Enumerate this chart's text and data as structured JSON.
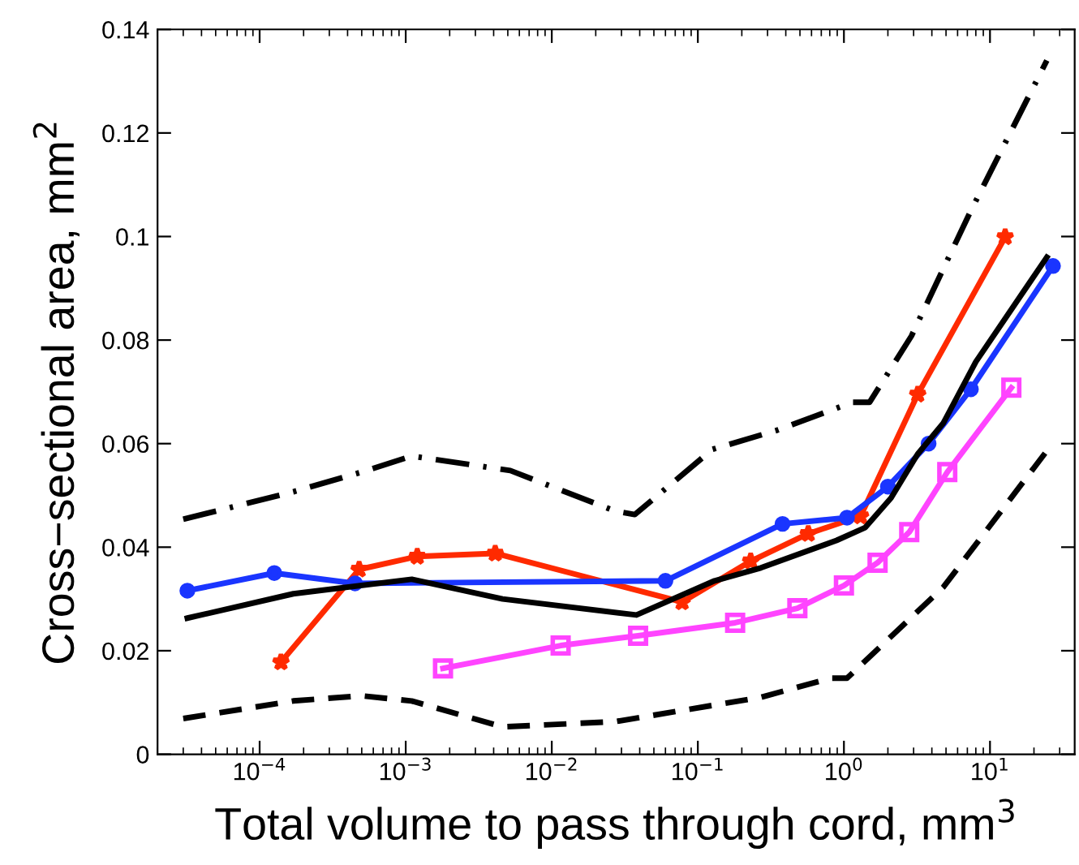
{
  "chart_data": {
    "type": "line",
    "xlabel": "Total volume to pass through cord, mm$^{3}$",
    "ylabel": "Cross−sectional area, mm$^{2}$",
    "log": "x",
    "xlim": [
      2e-05,
      38
    ],
    "xticks": [
      {
        "value": 0.0001,
        "label": "10$^{−4}$"
      },
      {
        "value": 0.001,
        "label": "10$^{−3}$"
      },
      {
        "value": 0.01,
        "label": "10$^{−2}$"
      },
      {
        "value": 0.1,
        "label": "10$^{−1}$"
      },
      {
        "value": 1,
        "label": "10$^{0}$"
      },
      {
        "value": 10,
        "label": "10$^{1}$"
      }
    ],
    "ylim": [
      0,
      0.14
    ],
    "yticks": [
      0,
      0.02,
      0.04,
      0.06,
      0.08,
      {
        "value": 0.1,
        "label": "0.1"
      },
      0.12,
      0.14
    ],
    "grid": false,
    "legend": false,
    "series": [
      {
        "color": "#000000",
        "marker": "none",
        "line_style": "dashed",
        "x": [
          3e-05,
          0.00017,
          0.0005,
          0.0011,
          0.0046,
          0.027,
          0.27,
          0.81,
          1.05,
          4.8,
          24.5
        ],
        "values": [
          0.0069,
          0.0103,
          0.0113,
          0.0103,
          0.0053,
          0.0063,
          0.011,
          0.0147,
          0.0147,
          0.0323,
          0.0586
        ]
      },
      {
        "color": "#000000",
        "marker": "none",
        "line_style": "dashdot",
        "x": [
          3e-05,
          0.00017,
          0.0005,
          0.0011,
          0.0052,
          0.027,
          0.037,
          0.126,
          0.35,
          1.15,
          1.5,
          2.9,
          7.4,
          24.5
        ],
        "values": [
          0.0454,
          0.0507,
          0.0545,
          0.0576,
          0.0548,
          0.047,
          0.0463,
          0.0589,
          0.0626,
          0.068,
          0.068,
          0.0808,
          0.105,
          0.134
        ]
      },
      {
        "color": "#ff44ff",
        "marker": "square",
        "line_style": "solid",
        "x": [
          0.0018,
          0.0115,
          0.039,
          0.18,
          0.48,
          1.0,
          1.7,
          2.8,
          5.1,
          14
        ],
        "values": [
          0.0166,
          0.021,
          0.0229,
          0.0254,
          0.0282,
          0.0326,
          0.037,
          0.0429,
          0.0545,
          0.0708
        ]
      },
      {
        "color": "#ff2a00",
        "marker": "star",
        "line_style": "solid",
        "x": [
          0.00014,
          0.00048,
          0.0012,
          0.0041,
          0.078,
          0.23,
          0.57,
          1.3,
          3.2,
          12.7
        ],
        "values": [
          0.0178,
          0.0357,
          0.0382,
          0.0388,
          0.0294,
          0.0373,
          0.0426,
          0.046,
          0.0695,
          0.0999
        ]
      },
      {
        "color": "#1a35ff",
        "marker": "circle",
        "line_style": "solid",
        "x": [
          3.2e-05,
          0.000126,
          0.00045,
          0.06,
          0.38,
          1.05,
          2.0,
          3.8,
          7.4,
          27
        ],
        "values": [
          0.0316,
          0.035,
          0.033,
          0.0335,
          0.0445,
          0.0457,
          0.0517,
          0.06,
          0.0705,
          0.0943
        ]
      },
      {
        "color": "#000000",
        "marker": "none",
        "line_style": "solid",
        "x": [
          3.2e-05,
          0.00017,
          0.0011,
          0.0046,
          0.038,
          0.13,
          0.27,
          0.89,
          1.4,
          2.1,
          3.2,
          4.8,
          8,
          24.5
        ],
        "values": [
          0.0263,
          0.031,
          0.0338,
          0.03,
          0.0269,
          0.0335,
          0.036,
          0.0413,
          0.0438,
          0.0495,
          0.058,
          0.064,
          0.0758,
          0.096
        ]
      }
    ]
  }
}
